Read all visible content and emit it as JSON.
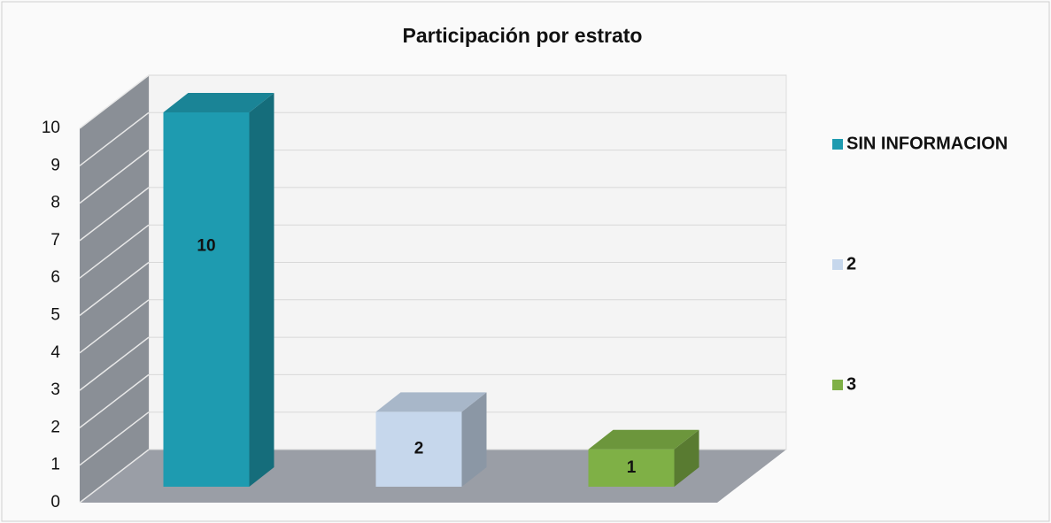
{
  "chart_data": {
    "type": "bar3d",
    "title": "Participación por estrato",
    "categories": [
      null
    ],
    "series": [
      {
        "name": "SIN INFORMACION",
        "color": "#1e9bb0",
        "values": [
          10
        ]
      },
      {
        "name": "2",
        "color": "#c6d7ec",
        "values": [
          2
        ]
      },
      {
        "name": "3",
        "color": "#7fb046",
        "values": [
          1
        ]
      }
    ],
    "ylim": [
      0,
      10
    ],
    "yticks": [
      0,
      1,
      2,
      3,
      4,
      5,
      6,
      7,
      8,
      9,
      10
    ],
    "grid": true,
    "legend": "right"
  }
}
